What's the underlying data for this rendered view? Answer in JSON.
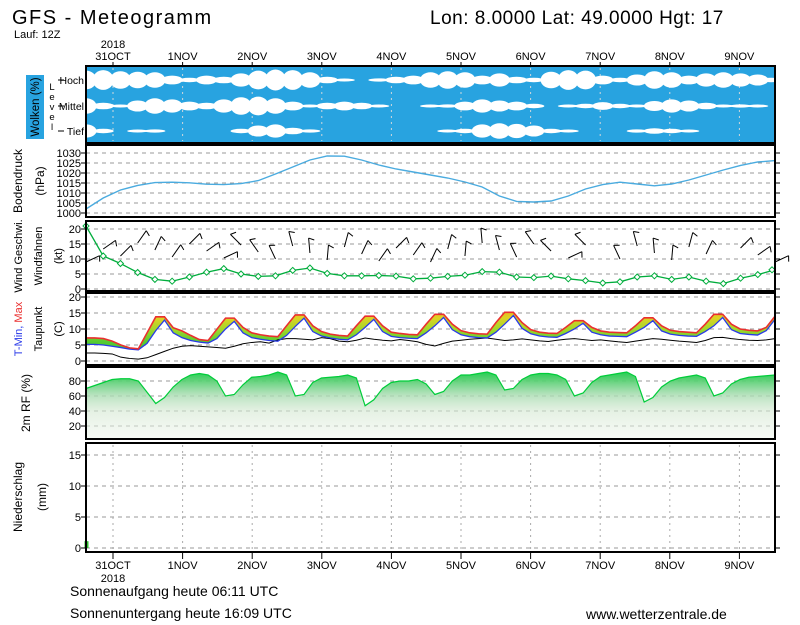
{
  "header": {
    "title": "GFS - Meteogramm",
    "location": "Lon: 8.0000 Lat: 49.0000 Hgt: 17",
    "run": "Lauf: 12Z"
  },
  "footer": {
    "sunrise": "Sonnenaufgang heute 06:11 UTC",
    "sunset": "Sonnenuntergang heute 16:09 UTC",
    "website": "www.wetterzentrale.de"
  },
  "colors": {
    "cloud_bg": "#28a3e0",
    "pressure_line": "#4aabdf",
    "green": "#00ad3c",
    "rh_top_green": "#00cd3a",
    "tmax_red": "#ea2f2f",
    "tmin_blue": "#2939e8",
    "dew_black": "#000000",
    "precip_bar": "#2cc32c",
    "grid": "#999999"
  },
  "chart_data": {
    "type": "meteogram-multipanel",
    "x_axis": {
      "year": "2018",
      "days": [
        "31OCT",
        "1NOV",
        "2NOV",
        "3NOV",
        "4NOV",
        "5NOV",
        "6NOV",
        "7NOV",
        "8NOV",
        "9NOV"
      ]
    },
    "panels": [
      {
        "id": "clouds",
        "type": "heatmap",
        "label": "Wolken (%)",
        "sublabel": "Level",
        "rows": [
          "Hoch",
          "Mittel",
          "Tief"
        ],
        "step_hours": 6,
        "hoch": [
          85,
          90,
          80,
          75,
          70,
          40,
          20,
          40,
          30,
          60,
          85,
          95,
          90,
          70,
          30,
          10,
          5,
          15,
          30,
          40,
          70,
          80,
          70,
          40,
          60,
          30,
          20,
          75,
          90,
          85,
          40,
          20,
          50,
          80,
          70,
          40,
          60,
          70,
          60,
          50,
          20
        ],
        "mittel": [
          70,
          30,
          10,
          50,
          70,
          60,
          40,
          30,
          60,
          80,
          85,
          70,
          40,
          10,
          30,
          40,
          30,
          10,
          0,
          5,
          10,
          15,
          40,
          60,
          50,
          40,
          20,
          5,
          10,
          20,
          35,
          20,
          10,
          45,
          60,
          50,
          30,
          10,
          15,
          10,
          5
        ],
        "tief": [
          60,
          20,
          5,
          10,
          15,
          5,
          0,
          0,
          5,
          20,
          50,
          60,
          30,
          15,
          5,
          0,
          0,
          0,
          0,
          0,
          5,
          10,
          20,
          60,
          70,
          65,
          50,
          20,
          10,
          5,
          0,
          5,
          15,
          25,
          20,
          10,
          5,
          0,
          0,
          0,
          0
        ]
      },
      {
        "id": "pressure",
        "type": "line",
        "label": "Bodendruck",
        "unit": "(hPa)",
        "yticks": [
          1030,
          1025,
          1020,
          1015,
          1010,
          1005,
          1000
        ],
        "step_hours": 6,
        "values": [
          1002,
          1007.5,
          1011.5,
          1013.8,
          1015.2,
          1015.4,
          1015.1,
          1014.4,
          1014.2,
          1014.7,
          1016.2,
          1019.5,
          1023.0,
          1026.5,
          1028.5,
          1028.4,
          1026.5,
          1024.0,
          1022.0,
          1020.5,
          1019.0,
          1017.5,
          1015.5,
          1013.0,
          1008.5,
          1005.8,
          1005.5,
          1006.0,
          1008.5,
          1012.0,
          1014.2,
          1015.4,
          1014.5,
          1013.6,
          1014.5,
          1016.5,
          1019.0,
          1021.5,
          1023.8,
          1025.5,
          1026.2
        ]
      },
      {
        "id": "wind",
        "type": "line",
        "label": "Wind Geschwi.",
        "label2": "Windfahnen",
        "unit": "(kt)",
        "yticks": [
          20,
          15,
          10,
          5,
          0
        ],
        "step_hours": 6,
        "speed": [
          21,
          11,
          8.5,
          5.5,
          3.2,
          2.6,
          4.0,
          5.6,
          6.8,
          5.0,
          4.2,
          4.4,
          6.2,
          7.0,
          5.2,
          4.4,
          4.4,
          4.5,
          4.3,
          3.4,
          3.6,
          4.2,
          4.6,
          5.8,
          5.6,
          4.0,
          3.8,
          4.3,
          3.4,
          2.8,
          2.0,
          2.4,
          4.0,
          4.4,
          3.2,
          4.0,
          2.6,
          1.8,
          3.6,
          4.8,
          6.4
        ],
        "direction_deg": [
          240,
          250,
          260,
          270,
          280,
          270,
          260,
          250,
          240,
          230,
          220,
          210,
          200,
          190,
          180,
          170,
          160,
          150,
          140,
          150,
          160,
          170,
          180,
          190,
          200,
          210,
          220,
          230,
          240,
          230,
          220,
          210,
          200,
          190,
          180,
          170,
          160,
          150,
          140,
          130,
          120
        ]
      },
      {
        "id": "temperature",
        "type": "line-band",
        "label_min": "T-Min,",
        "label_max": "Max",
        "label_dew": "Taupunkt",
        "unit": "(C)",
        "yticks": [
          20,
          15,
          10,
          5,
          0
        ],
        "step_hours": 3,
        "tmax": [
          7.2,
          7.2,
          7.0,
          6.2,
          5.0,
          4.1,
          3.8,
          8.8,
          13.8,
          13.8,
          10.4,
          9.4,
          8.0,
          6.7,
          6.4,
          9.9,
          13.4,
          13.4,
          10.5,
          8.8,
          8.2,
          7.8,
          7.6,
          11.0,
          14.4,
          14.4,
          11.0,
          9.2,
          8.4,
          8.0,
          7.8,
          11.0,
          14.0,
          14.0,
          11.0,
          9.0,
          8.6,
          8.3,
          8.2,
          11.5,
          14.6,
          14.6,
          11.5,
          9.5,
          8.8,
          8.5,
          8.4,
          12.0,
          15.2,
          15.2,
          12.0,
          9.8,
          9.0,
          8.7,
          8.6,
          10.5,
          12.6,
          12.6,
          10.5,
          9.4,
          9.0,
          8.9,
          8.8,
          11.0,
          13.5,
          13.5,
          11.0,
          9.6,
          9.2,
          9.0,
          8.8,
          11.5,
          14.6,
          14.6,
          11.5,
          10.0,
          9.6,
          9.4,
          10.5,
          14.0
        ],
        "tmin": [
          5.2,
          5.2,
          5.0,
          4.6,
          4.2,
          3.7,
          3.5,
          5.5,
          9.5,
          12.8,
          8.8,
          7.3,
          6.4,
          5.9,
          5.6,
          7.0,
          10.0,
          12.4,
          8.8,
          7.3,
          6.8,
          6.4,
          6.2,
          8.0,
          10.8,
          13.4,
          9.2,
          7.8,
          7.2,
          6.8,
          6.6,
          8.2,
          10.5,
          13.0,
          9.2,
          7.7,
          7.3,
          7.1,
          7.0,
          8.8,
          11.0,
          13.6,
          9.8,
          8.2,
          7.6,
          7.3,
          7.2,
          9.0,
          11.5,
          14.2,
          10.2,
          8.5,
          7.8,
          7.5,
          7.4,
          8.6,
          10.0,
          11.8,
          9.0,
          8.2,
          7.8,
          7.7,
          7.6,
          9.0,
          10.5,
          12.6,
          9.4,
          8.4,
          8.0,
          7.8,
          7.7,
          9.2,
          11.0,
          13.6,
          9.8,
          8.6,
          8.3,
          8.1,
          9.5,
          13.0
        ],
        "taupunkt": [
          2.5,
          2.5,
          2.4,
          2.2,
          1.2,
          0.8,
          0.6,
          1.0,
          2.0,
          3.0,
          4.0,
          4.6,
          4.8,
          4.6,
          4.4,
          4.2,
          4.0,
          4.6,
          5.4,
          5.8,
          6.0,
          5.6,
          6.6,
          7.0,
          7.0,
          6.8,
          6.6,
          7.3,
          7.0,
          6.2,
          6.0,
          6.5,
          7.2,
          6.8,
          6.5,
          6.3,
          6.7,
          6.4,
          6.0,
          5.2,
          4.7,
          5.5,
          6.2,
          6.5,
          6.8,
          7.0,
          7.2,
          6.8,
          6.4,
          6.6,
          6.9,
          6.6,
          6.3,
          6.1,
          6.5,
          6.8,
          7.0,
          6.7,
          6.4,
          6.6,
          6.3,
          6.0,
          5.8,
          6.2,
          6.6,
          7.0,
          6.8,
          6.5,
          6.2,
          6.0,
          5.8,
          6.4,
          7.3,
          7.4,
          7.0,
          6.7,
          6.5,
          6.4,
          6.6,
          7.0
        ]
      },
      {
        "id": "humidity",
        "type": "area",
        "label": "2m RF (%)",
        "yticks": [
          80,
          60,
          40,
          20
        ],
        "step_hours": 3,
        "values": [
          70,
          74,
          78,
          82,
          83,
          83,
          80,
          65,
          50,
          58,
          72,
          82,
          88,
          90,
          88,
          80,
          60,
          62,
          75,
          85,
          86,
          88,
          92,
          88,
          60,
          62,
          78,
          84,
          85,
          86,
          88,
          84,
          47,
          55,
          70,
          78,
          80,
          80,
          82,
          76,
          62,
          66,
          80,
          88,
          88,
          90,
          92,
          88,
          68,
          70,
          82,
          88,
          90,
          90,
          88,
          82,
          60,
          64,
          78,
          86,
          88,
          90,
          92,
          86,
          52,
          58,
          72,
          80,
          84,
          86,
          88,
          84,
          60,
          64,
          76,
          82,
          85,
          86,
          87,
          88
        ]
      },
      {
        "id": "precipitation",
        "type": "bar",
        "label": "Niederschlag",
        "unit": "(mm)",
        "yticks": [
          15,
          10,
          5,
          0
        ],
        "step_hours": 6,
        "values": [
          1.1,
          0,
          0,
          0,
          0,
          0,
          0,
          0,
          0,
          0,
          0,
          0,
          0,
          0,
          0,
          0,
          0,
          0,
          0,
          0,
          0,
          0,
          0,
          0,
          0,
          0,
          0,
          0,
          0,
          0,
          0,
          0,
          0,
          0,
          0,
          0,
          0,
          0,
          0,
          0,
          0
        ]
      }
    ]
  }
}
